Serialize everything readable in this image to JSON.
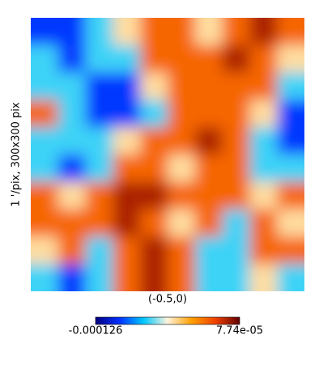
{
  "chart_data": {
    "type": "heatmap",
    "xlabel": "(-0.5,0)",
    "ylabel": "1 '/pix,  300x300 pix",
    "colormap": [
      "#000080",
      "#0030ff",
      "#00c8ff",
      "#fff4dc",
      "#ffa000",
      "#f04000",
      "#600000"
    ],
    "zlim": [
      -0.000126,
      7.74e-05
    ],
    "zticks": [
      -0.000126,
      {
        "value": 7.74e-05,
        "label": "7.74e-05"
      }
    ],
    "values": [
      [
        -9e-05,
        -9e-05,
        -5e-05,
        -1.5e-05,
        3e-05,
        3e-05,
        -1.5e-05,
        3e-05,
        6e-05,
        3e-05
      ],
      [
        -5e-05,
        -9e-05,
        -5e-05,
        -5e-05,
        3e-05,
        3e-05,
        3e-05,
        6e-05,
        3e-05,
        -1.5e-05
      ],
      [
        -5e-05,
        -5e-05,
        -9e-05,
        -9e-05,
        -1.5e-05,
        3e-05,
        3e-05,
        3e-05,
        3e-05,
        -5e-05
      ],
      [
        3e-05,
        -5e-05,
        -9e-05,
        -9e-05,
        -5e-05,
        3e-05,
        3e-05,
        3e-05,
        -1.5e-05,
        -9e-05
      ],
      [
        -5e-05,
        -5e-05,
        -5e-05,
        -1.5e-05,
        3e-05,
        3e-05,
        6e-05,
        3e-05,
        -5e-05,
        -9e-05
      ],
      [
        -5e-05,
        -9e-05,
        -5e-05,
        3e-05,
        3e-05,
        -1.5e-05,
        3e-05,
        3e-05,
        -5e-05,
        -5e-05
      ],
      [
        3e-05,
        -1.5e-05,
        3e-05,
        6e-05,
        6e-05,
        3e-05,
        3e-05,
        3e-05,
        -1.5e-05,
        3e-05
      ],
      [
        3e-05,
        3e-05,
        3e-05,
        6e-05,
        3e-05,
        -1.5e-05,
        3e-05,
        -5e-05,
        3e-05,
        -1.5e-05
      ],
      [
        -1.5e-05,
        3e-05,
        -5e-05,
        3e-05,
        6e-05,
        3e-05,
        -5e-05,
        -5e-05,
        3e-05,
        3e-05
      ],
      [
        -5e-05,
        -9e-05,
        -5e-05,
        3e-05,
        6e-05,
        3e-05,
        -5e-05,
        -5e-05,
        -1.5e-05,
        -5e-05
      ]
    ]
  }
}
